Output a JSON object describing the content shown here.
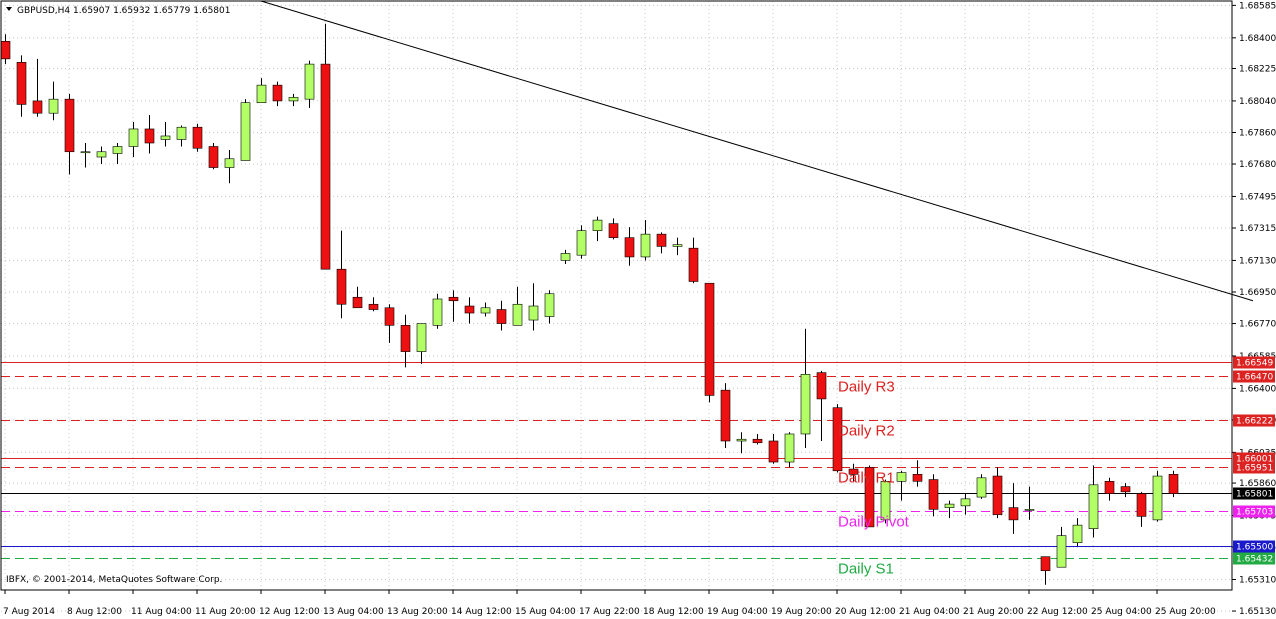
{
  "header": {
    "symbol_line": "GBPUSD,H4  1.65907 1.65932 1.65779 1.65801",
    "copyright": "IBFX, © 2001-2014, MetaQuotes Software Corp."
  },
  "colors": {
    "bull": "#b2ff66",
    "bear": "#ee1111",
    "wick": "#000000",
    "resistance": "#dd2222",
    "pivot": "#ee22ee",
    "support": "#22aa44",
    "support_solid": "#1a1acc",
    "current": "#000000"
  },
  "chart_data": {
    "type": "candlestick",
    "symbol": "GBPUSD",
    "timeframe": "H4",
    "ylim": [
      1.6525,
      1.6861
    ],
    "y_ticks": [
      "1.68585",
      "1.68400",
      "1.68225",
      "1.68040",
      "1.67860",
      "1.67680",
      "1.67495",
      "1.67315",
      "1.67130",
      "1.66950",
      "1.66770",
      "1.66585",
      "1.66400",
      "1.66220",
      "1.66035",
      "1.65860",
      "1.65675",
      "1.65495",
      "1.65310",
      "1.65130"
    ],
    "x_labels": [
      {
        "label": "7 Aug 2014",
        "index": 0
      },
      {
        "label": "8 Aug 12:00",
        "index": 4
      },
      {
        "label": "11 Aug 04:00",
        "index": 8
      },
      {
        "label": "11 Aug 20:00",
        "index": 12
      },
      {
        "label": "12 Aug 12:00",
        "index": 16
      },
      {
        "label": "13 Aug 04:00",
        "index": 20
      },
      {
        "label": "13 Aug 20:00",
        "index": 24
      },
      {
        "label": "14 Aug 12:00",
        "index": 28
      },
      {
        "label": "15 Aug 04:00",
        "index": 32
      },
      {
        "label": "17 Aug 22:00",
        "index": 36
      },
      {
        "label": "18 Aug 12:00",
        "index": 40
      },
      {
        "label": "19 Aug 04:00",
        "index": 44
      },
      {
        "label": "19 Aug 20:00",
        "index": 48
      },
      {
        "label": "20 Aug 12:00",
        "index": 52
      },
      {
        "label": "21 Aug 04:00",
        "index": 56
      },
      {
        "label": "21 Aug 20:00",
        "index": 60
      },
      {
        "label": "22 Aug 12:00",
        "index": 64
      },
      {
        "label": "25 Aug 04:00",
        "index": 68
      },
      {
        "label": "25 Aug 20:00",
        "index": 72
      }
    ],
    "candles": [
      {
        "o": 1.6838,
        "h": 1.6842,
        "l": 1.6825,
        "c": 1.6828
      },
      {
        "o": 1.6826,
        "h": 1.683,
        "l": 1.6795,
        "c": 1.6802
      },
      {
        "o": 1.6804,
        "h": 1.6828,
        "l": 1.6795,
        "c": 1.6797
      },
      {
        "o": 1.6797,
        "h": 1.6815,
        "l": 1.6793,
        "c": 1.6805
      },
      {
        "o": 1.6805,
        "h": 1.6808,
        "l": 1.6762,
        "c": 1.6775
      },
      {
        "o": 1.6775,
        "h": 1.678,
        "l": 1.6766,
        "c": 1.6775
      },
      {
        "o": 1.6772,
        "h": 1.6778,
        "l": 1.6768,
        "c": 1.6775
      },
      {
        "o": 1.6774,
        "h": 1.678,
        "l": 1.6768,
        "c": 1.6778
      },
      {
        "o": 1.6778,
        "h": 1.6792,
        "l": 1.6772,
        "c": 1.6788
      },
      {
        "o": 1.6788,
        "h": 1.6796,
        "l": 1.6774,
        "c": 1.678
      },
      {
        "o": 1.6782,
        "h": 1.6792,
        "l": 1.6778,
        "c": 1.6784
      },
      {
        "o": 1.6782,
        "h": 1.679,
        "l": 1.6778,
        "c": 1.6789
      },
      {
        "o": 1.6789,
        "h": 1.6791,
        "l": 1.6775,
        "c": 1.6777
      },
      {
        "o": 1.6778,
        "h": 1.678,
        "l": 1.6765,
        "c": 1.6766
      },
      {
        "o": 1.6766,
        "h": 1.6776,
        "l": 1.6757,
        "c": 1.6771
      },
      {
        "o": 1.677,
        "h": 1.6805,
        "l": 1.677,
        "c": 1.6803
      },
      {
        "o": 1.6803,
        "h": 1.6817,
        "l": 1.6805,
        "c": 1.6813
      },
      {
        "o": 1.6813,
        "h": 1.6815,
        "l": 1.6801,
        "c": 1.6804
      },
      {
        "o": 1.6804,
        "h": 1.6808,
        "l": 1.6801,
        "c": 1.6806
      },
      {
        "o": 1.6805,
        "h": 1.6827,
        "l": 1.68,
        "c": 1.6825
      },
      {
        "o": 1.6825,
        "h": 1.6848,
        "l": 1.671,
        "c": 1.6708
      },
      {
        "o": 1.6708,
        "h": 1.673,
        "l": 1.668,
        "c": 1.6688
      },
      {
        "o": 1.6692,
        "h": 1.6698,
        "l": 1.6688,
        "c": 1.6686
      },
      {
        "o": 1.6688,
        "h": 1.6692,
        "l": 1.6684,
        "c": 1.6685
      },
      {
        "o": 1.6686,
        "h": 1.6688,
        "l": 1.6666,
        "c": 1.6676
      },
      {
        "o": 1.6676,
        "h": 1.6682,
        "l": 1.6652,
        "c": 1.6661
      },
      {
        "o": 1.6661,
        "h": 1.6677,
        "l": 1.6654,
        "c": 1.6677
      },
      {
        "o": 1.6676,
        "h": 1.6694,
        "l": 1.6674,
        "c": 1.6691
      },
      {
        "o": 1.6692,
        "h": 1.6696,
        "l": 1.6678,
        "c": 1.669
      },
      {
        "o": 1.6687,
        "h": 1.6692,
        "l": 1.6677,
        "c": 1.6683
      },
      {
        "o": 1.6683,
        "h": 1.6689,
        "l": 1.6681,
        "c": 1.6686
      },
      {
        "o": 1.6685,
        "h": 1.669,
        "l": 1.6673,
        "c": 1.6677
      },
      {
        "o": 1.6676,
        "h": 1.6698,
        "l": 1.6676,
        "c": 1.6688
      },
      {
        "o": 1.6679,
        "h": 1.67,
        "l": 1.6673,
        "c": 1.6687
      },
      {
        "o": 1.6681,
        "h": 1.6696,
        "l": 1.6677,
        "c": 1.6694
      },
      {
        "o": 1.6713,
        "h": 1.6719,
        "l": 1.6711,
        "c": 1.6717
      },
      {
        "o": 1.6716,
        "h": 1.6733,
        "l": 1.6714,
        "c": 1.673
      },
      {
        "o": 1.673,
        "h": 1.6738,
        "l": 1.6724,
        "c": 1.6736
      },
      {
        "o": 1.6734,
        "h": 1.6737,
        "l": 1.6725,
        "c": 1.6726
      },
      {
        "o": 1.6726,
        "h": 1.6732,
        "l": 1.671,
        "c": 1.6715
      },
      {
        "o": 1.6715,
        "h": 1.6736,
        "l": 1.6713,
        "c": 1.6728
      },
      {
        "o": 1.6728,
        "h": 1.6729,
        "l": 1.6717,
        "c": 1.6721
      },
      {
        "o": 1.6721,
        "h": 1.6726,
        "l": 1.6716,
        "c": 1.6722
      },
      {
        "o": 1.672,
        "h": 1.6726,
        "l": 1.67,
        "c": 1.6701
      },
      {
        "o": 1.67,
        "h": 1.67,
        "l": 1.6632,
        "c": 1.6636
      },
      {
        "o": 1.6639,
        "h": 1.6643,
        "l": 1.6606,
        "c": 1.661
      },
      {
        "o": 1.661,
        "h": 1.6615,
        "l": 1.6603,
        "c": 1.6611
      },
      {
        "o": 1.6611,
        "h": 1.6614,
        "l": 1.6608,
        "c": 1.6609
      },
      {
        "o": 1.661,
        "h": 1.6614,
        "l": 1.6597,
        "c": 1.6598
      },
      {
        "o": 1.6598,
        "h": 1.6615,
        "l": 1.6595,
        "c": 1.6614
      },
      {
        "o": 1.6614,
        "h": 1.6674,
        "l": 1.6606,
        "c": 1.6648
      },
      {
        "o": 1.6649,
        "h": 1.665,
        "l": 1.661,
        "c": 1.6634
      },
      {
        "o": 1.6629,
        "h": 1.6631,
        "l": 1.6592,
        "c": 1.6593
      },
      {
        "o": 1.6594,
        "h": 1.6597,
        "l": 1.6587,
        "c": 1.6591
      },
      {
        "o": 1.6595,
        "h": 1.6596,
        "l": 1.6563,
        "c": 1.6561
      },
      {
        "o": 1.6565,
        "h": 1.6588,
        "l": 1.6563,
        "c": 1.6587
      },
      {
        "o": 1.6587,
        "h": 1.6593,
        "l": 1.6576,
        "c": 1.6592
      },
      {
        "o": 1.6591,
        "h": 1.6599,
        "l": 1.6584,
        "c": 1.6587
      },
      {
        "o": 1.6588,
        "h": 1.6591,
        "l": 1.6567,
        "c": 1.6571
      },
      {
        "o": 1.6572,
        "h": 1.6576,
        "l": 1.6566,
        "c": 1.6574
      },
      {
        "o": 1.6573,
        "h": 1.658,
        "l": 1.6568,
        "c": 1.6577
      },
      {
        "o": 1.6578,
        "h": 1.6591,
        "l": 1.6577,
        "c": 1.6589
      },
      {
        "o": 1.659,
        "h": 1.6595,
        "l": 1.6566,
        "c": 1.6568
      },
      {
        "o": 1.6572,
        "h": 1.6586,
        "l": 1.6557,
        "c": 1.6565
      },
      {
        "o": 1.6571,
        "h": 1.6584,
        "l": 1.6565,
        "c": 1.6571
      },
      {
        "o": 1.6544,
        "h": 1.6543,
        "l": 1.6528,
        "c": 1.6536
      },
      {
        "o": 1.6538,
        "h": 1.6561,
        "l": 1.6538,
        "c": 1.6556
      },
      {
        "o": 1.6552,
        "h": 1.6566,
        "l": 1.655,
        "c": 1.6562
      },
      {
        "o": 1.656,
        "h": 1.6596,
        "l": 1.6555,
        "c": 1.6585
      },
      {
        "o": 1.6587,
        "h": 1.6589,
        "l": 1.6576,
        "c": 1.658
      },
      {
        "o": 1.6584,
        "h": 1.6586,
        "l": 1.6578,
        "c": 1.6581
      },
      {
        "o": 1.658,
        "h": 1.6581,
        "l": 1.6561,
        "c": 1.6567
      },
      {
        "o": 1.6565,
        "h": 1.6593,
        "l": 1.6564,
        "c": 1.659
      },
      {
        "o": 1.6591,
        "h": 1.6593,
        "l": 1.6578,
        "c": 1.658
      }
    ],
    "trendline": {
      "from": {
        "index": 16,
        "price": 1.6861
      },
      "to": {
        "index": 78,
        "price": 1.669
      }
    },
    "levels": [
      {
        "price": 1.66549,
        "label": "1.66549",
        "style": "solid",
        "color": "resistance"
      },
      {
        "price": 1.6647,
        "label": "1.66470",
        "style": "dashed",
        "color": "resistance",
        "name": "Daily R3"
      },
      {
        "price": 1.66222,
        "label": "1.66222",
        "style": "dashed",
        "color": "resistance",
        "name": "Daily R2"
      },
      {
        "price": 1.66001,
        "label": "1.66001",
        "style": "solid",
        "color": "resistance"
      },
      {
        "price": 1.65951,
        "label": "1.65951",
        "style": "dashed",
        "color": "resistance",
        "name": "Daily R1"
      },
      {
        "price": 1.65801,
        "label": "1.65801",
        "style": "solid",
        "color": "current"
      },
      {
        "price": 1.65703,
        "label": "1.65703",
        "style": "dashed",
        "color": "pivot",
        "name": "Daily Pivot"
      },
      {
        "price": 1.655,
        "label": "1.65500",
        "style": "solid",
        "color": "support_solid"
      },
      {
        "price": 1.65432,
        "label": "1.65432",
        "style": "dashed",
        "color": "support",
        "name": "Daily S1"
      }
    ]
  }
}
